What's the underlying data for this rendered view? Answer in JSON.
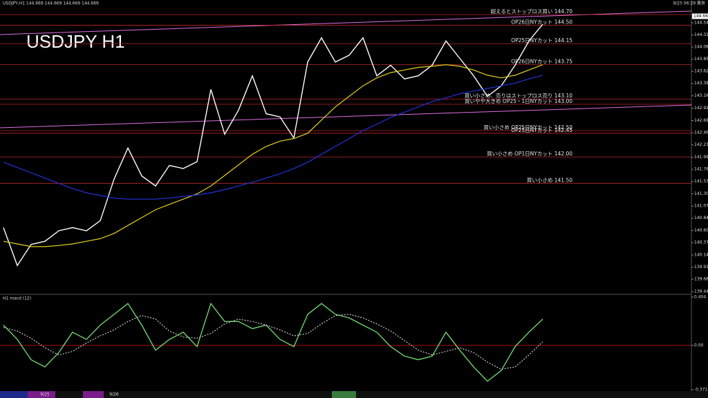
{
  "window": {
    "header": "USDJPY,H1  144.669 144.669 144.669 144.669",
    "clock": "9/25 06:29 東京",
    "watermark": "USDJPY H1"
  },
  "chart_data": [
    {
      "type": "line",
      "categories": [
        null,
        null,
        null,
        "9/25",
        null,
        null,
        null,
        null,
        "9/26",
        null,
        null,
        null,
        null,
        null,
        null,
        null,
        null,
        null,
        null,
        null,
        null,
        null,
        null,
        null,
        null,
        null,
        null,
        null,
        null,
        null,
        null,
        null,
        null,
        null,
        null,
        null,
        null,
        null,
        null,
        null
      ],
      "series": [
        {
          "color": "#ffffff",
          "values": [
            140.66,
            139.94,
            140.34,
            140.4,
            140.6,
            140.66,
            140.6,
            140.79,
            141.58,
            142.17,
            141.64,
            141.45,
            141.84,
            141.78,
            141.91,
            143.28,
            142.43,
            142.89,
            143.54,
            142.82,
            142.76,
            142.36,
            143.8,
            144.26,
            143.8,
            143.93,
            144.26,
            143.54,
            143.74,
            143.48,
            143.54,
            143.74,
            144.2,
            143.87,
            143.54,
            143.15,
            143.35,
            143.74,
            144.2,
            144.52
          ]
        },
        {
          "color": "#e6d31e",
          "values": [
            140.4,
            140.35,
            140.3,
            140.3,
            140.32,
            140.35,
            140.4,
            140.45,
            140.55,
            140.7,
            140.85,
            141.0,
            141.1,
            141.2,
            141.3,
            141.45,
            141.65,
            141.85,
            142.05,
            142.2,
            142.3,
            142.35,
            142.45,
            142.7,
            142.95,
            143.15,
            143.35,
            143.5,
            143.6,
            143.65,
            143.7,
            143.72,
            143.75,
            143.72,
            143.65,
            143.55,
            143.5,
            143.55,
            143.65,
            143.75
          ]
        },
        {
          "color": "#2233dd",
          "values": [
            141.9,
            141.8,
            141.7,
            141.6,
            141.5,
            141.4,
            141.32,
            141.27,
            141.22,
            141.2,
            141.2,
            141.2,
            141.22,
            141.25,
            141.28,
            141.32,
            141.38,
            141.45,
            141.52,
            141.6,
            141.68,
            141.78,
            141.9,
            142.05,
            142.2,
            142.35,
            142.5,
            142.62,
            142.75,
            142.85,
            142.95,
            143.05,
            143.12,
            143.2,
            143.25,
            143.3,
            143.35,
            143.4,
            143.48,
            143.55
          ]
        }
      ],
      "ylim": [
        139.42,
        144.82
      ],
      "yticks": [
        139.445,
        {
          "value": 139.68,
          "label": "139.680"
        },
        {
          "value": 139.91,
          "label": "139.910"
        },
        {
          "value": 140.14,
          "label": "140.140"
        },
        140.375,
        140.605,
        {
          "value": 140.84,
          "label": "140.840"
        },
        {
          "value": 141.07,
          "label": "141.070"
        },
        {
          "value": 141.3,
          "label": "141.300"
        },
        141.535,
        141.765,
        141.995,
        {
          "value": 142.23,
          "label": "142.230"
        },
        {
          "value": 142.46,
          "label": "142.460"
        },
        {
          "value": 142.69,
          "label": "142.690"
        },
        142.925,
        {
          "value": 143.16,
          "label": "143.160"
        },
        143.395,
        143.625,
        143.855,
        144.085,
        144.315,
        144.545
      ],
      "last_price": 144.669,
      "level_color": "#c0282a",
      "levels": [
        {
          "value": 144.7,
          "label": "超えるとストップロス買い 144.70"
        },
        {
          "value": 144.5,
          "label": "OP26日NYカット 144.50"
        },
        {
          "value": 144.15,
          "label": "OP25日NYカット 144.15"
        },
        {
          "value": 143.75,
          "label": "OP26日NYカット 143.75"
        },
        {
          "value": 143.1,
          "label": "買い小さめ、売りはストップロス売り 143.10"
        },
        {
          "value": 143,
          "label": "買いやや大きめ OP25・1日NYカット 143.00"
        },
        {
          "value": 142.5,
          "label": "買い小さめ OP25日NYカット 142.50"
        },
        {
          "value": 142.45,
          "label": "OP25日NYカット 142.45"
        },
        {
          "value": 142,
          "label": "買い小さめ OP1日NYカット 142.00"
        },
        {
          "value": 141.5,
          "label": "買い小さめ 141.50"
        }
      ]
    },
    {
      "type": "line",
      "title": "H1 macd (12)",
      "series": [
        {
          "color": "#6fd36f",
          "values": [
            0.17,
            0.05,
            -0.12,
            -0.18,
            -0.06,
            0.11,
            0.05,
            0.17,
            0.26,
            0.35,
            0.17,
            -0.04,
            0.05,
            0.11,
            -0.01,
            0.35,
            0.2,
            0.2,
            0.14,
            0.17,
            0.05,
            -0.01,
            0.26,
            0.35,
            0.26,
            0.23,
            0.17,
            0.11,
            -0.01,
            -0.09,
            -0.12,
            -0.09,
            0.11,
            -0.04,
            -0.18,
            -0.3,
            -0.21,
            -0.01,
            0.11,
            0.22
          ]
        },
        {
          "color": "#cfcfcf",
          "dashed": true,
          "values": [
            0.15,
            0.12,
            0.06,
            -0.02,
            -0.08,
            -0.05,
            0.02,
            0.08,
            0.13,
            0.2,
            0.25,
            0.22,
            0.12,
            0.07,
            0.06,
            0.1,
            0.18,
            0.22,
            0.2,
            0.17,
            0.13,
            0.08,
            0.1,
            0.18,
            0.25,
            0.26,
            0.23,
            0.18,
            0.12,
            0.04,
            -0.04,
            -0.08,
            -0.05,
            -0.02,
            -0.06,
            -0.14,
            -0.2,
            -0.18,
            -0.08,
            0.03
          ]
        }
      ],
      "ylim": [
        -0.371,
        0.404
      ],
      "yticks": [
        0.404,
        {
          "value": 0,
          "label": "0.00"
        },
        -0.371
      ],
      "zero_color": "#b01010"
    }
  ]
}
